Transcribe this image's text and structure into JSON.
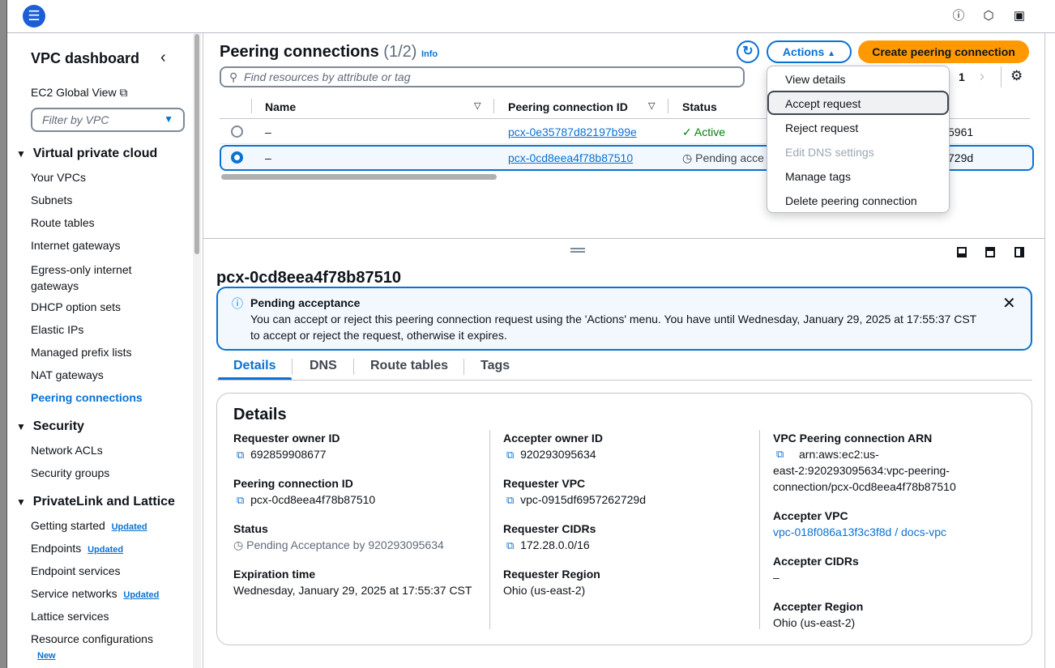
{
  "topbar": {
    "icons": [
      "menu-icon",
      "info-icon",
      "settings-hex-icon",
      "feedback-icon"
    ]
  },
  "sidebar": {
    "title": "VPC dashboard",
    "global_view": "EC2 Global View",
    "filter_placeholder": "Filter by VPC",
    "sections": [
      {
        "label": "Virtual private cloud",
        "items": [
          "Your VPCs",
          "Subnets",
          "Route tables",
          "Internet gateways",
          "Egress-only internet gateways",
          "DHCP option sets",
          "Elastic IPs",
          "Managed prefix lists",
          "NAT gateways",
          "Peering connections"
        ]
      },
      {
        "label": "Security",
        "items": [
          "Network ACLs",
          "Security groups"
        ]
      },
      {
        "label": "PrivateLink and Lattice",
        "items": [
          "Getting started",
          "Endpoints",
          "Endpoint services",
          "Service networks",
          "Lattice services",
          "Resource configurations"
        ]
      }
    ],
    "egress_line1": "Egress-only internet",
    "egress_line2": "gateways",
    "badge_updated": "Updated",
    "badge_new": "New",
    "active": "Peering connections"
  },
  "list": {
    "title": "Peering connections",
    "count": "(1/2)",
    "info": "Info",
    "actions_label": "Actions",
    "create_label": "Create peering connection",
    "search_placeholder": "Find resources by attribute or tag",
    "page": "1",
    "columns": [
      "Name",
      "Peering connection ID",
      "Status"
    ],
    "rows": [
      {
        "name": "–",
        "id": "pcx-0e35787d82197b99e",
        "status": "Active",
        "tail": "5961",
        "selected": false
      },
      {
        "name": "–",
        "id": "pcx-0cd8eea4f78b87510",
        "status": "Pending acce",
        "tail": "729d",
        "selected": true
      }
    ]
  },
  "actions_menu": [
    "View details",
    "Accept request",
    "Reject request",
    "Edit DNS settings",
    "Manage tags",
    "Delete peering connection"
  ],
  "detail": {
    "title": "pcx-0cd8eea4f78b87510",
    "alert": {
      "title": "Pending acceptance",
      "line1": "You can accept or reject this peering connection request using the 'Actions' menu. You have until Wednesday, January 29, 2025 at 17:55:37 CST",
      "line2": "to accept or reject the request, otherwise it expires."
    },
    "tabs": [
      "Details",
      "DNS",
      "Route tables",
      "Tags"
    ],
    "card_title": "Details",
    "fields": {
      "requester_owner_id": {
        "label": "Requester owner ID",
        "value": "692859908677"
      },
      "peering_id": {
        "label": "Peering connection ID",
        "value": "pcx-0cd8eea4f78b87510"
      },
      "status": {
        "label": "Status",
        "value": "Pending Acceptance by 920293095634"
      },
      "expiration": {
        "label": "Expiration time",
        "value": "Wednesday, January 29, 2025 at 17:55:37 CST"
      },
      "accepter_owner_id": {
        "label": "Accepter owner ID",
        "value": "920293095634"
      },
      "requester_vpc": {
        "label": "Requester VPC",
        "value": "vpc-0915df6957262729d"
      },
      "requester_cidrs": {
        "label": "Requester CIDRs",
        "value": "172.28.0.0/16"
      },
      "requester_region": {
        "label": "Requester Region",
        "value": "Ohio (us-east-2)"
      },
      "arn": {
        "label": "VPC Peering connection ARN",
        "line1": "arn:aws:ec2:us-",
        "line2": "east-2:920293095634:vpc-peering-",
        "line3": "connection/pcx-0cd8eea4f78b87510"
      },
      "accepter_vpc": {
        "label": "Accepter VPC",
        "value": "vpc-018f086a13f3c3f8d / docs-vpc"
      },
      "accepter_cidrs": {
        "label": "Accepter CIDRs",
        "value": "–"
      },
      "accepter_region": {
        "label": "Accepter Region",
        "value": "Ohio (us-east-2)"
      }
    }
  },
  "colors": {
    "accent": "#0972d3",
    "primary_button": "#ff9900",
    "success": "#037f0c"
  }
}
